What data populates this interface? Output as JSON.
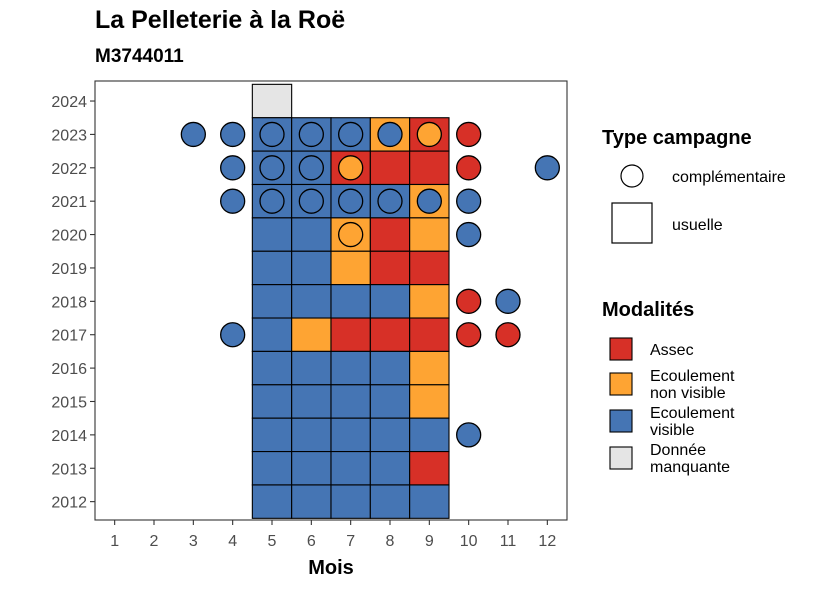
{
  "title": "La Pelleterie à la Roë",
  "subtitle": "M3744011",
  "chart_data": {
    "type": "heatmap",
    "xlabel": "Mois",
    "ylabel": "",
    "x_ticks": [
      1,
      2,
      3,
      4,
      5,
      6,
      7,
      8,
      9,
      10,
      11,
      12
    ],
    "y_ticks": [
      2012,
      2013,
      2014,
      2015,
      2016,
      2017,
      2018,
      2019,
      2020,
      2021,
      2022,
      2023,
      2024
    ],
    "xlim": [
      0.5,
      12.5
    ],
    "ylim": [
      2011.45,
      2024.6
    ],
    "grid": false,
    "legend_position": "right",
    "colors": {
      "Assec": "#d73027",
      "Ecoulement non visible": "#fea433",
      "Ecoulement visible": "#4575b4",
      "Donnée manquante": "#e5e5e5"
    },
    "legends": {
      "type_title": "Type campagne",
      "type_items": [
        {
          "label": "complémentaire",
          "shape": "circle"
        },
        {
          "label": "usuelle",
          "shape": "square"
        }
      ],
      "mod_title": "Modalités",
      "mod_items": [
        {
          "key": "Assec",
          "lines": [
            "Assec"
          ]
        },
        {
          "key": "Ecoulement non visible",
          "lines": [
            "Ecoulement",
            "non visible"
          ]
        },
        {
          "key": "Ecoulement visible",
          "lines": [
            "Ecoulement",
            "visible"
          ]
        },
        {
          "key": "Donnée manquante",
          "lines": [
            "Donnée",
            "manquante"
          ]
        }
      ]
    },
    "usuelle": [
      {
        "year": 2024,
        "months": {
          "5": "Donnée manquante"
        }
      },
      {
        "year": 2023,
        "months": {
          "5": "Ecoulement visible",
          "6": "Ecoulement visible",
          "7": "Ecoulement visible",
          "8": "Ecoulement non visible",
          "9": "Assec"
        }
      },
      {
        "year": 2022,
        "months": {
          "5": "Ecoulement visible",
          "6": "Ecoulement visible",
          "7": "Assec",
          "8": "Assec",
          "9": "Assec"
        }
      },
      {
        "year": 2021,
        "months": {
          "5": "Ecoulement visible",
          "6": "Ecoulement visible",
          "7": "Ecoulement visible",
          "8": "Ecoulement visible",
          "9": "Ecoulement non visible"
        }
      },
      {
        "year": 2020,
        "months": {
          "5": "Ecoulement visible",
          "6": "Ecoulement visible",
          "7": "Ecoulement non visible",
          "8": "Assec",
          "9": "Ecoulement non visible"
        }
      },
      {
        "year": 2019,
        "months": {
          "5": "Ecoulement visible",
          "6": "Ecoulement visible",
          "7": "Ecoulement non visible",
          "8": "Assec",
          "9": "Assec"
        }
      },
      {
        "year": 2018,
        "months": {
          "5": "Ecoulement visible",
          "6": "Ecoulement visible",
          "7": "Ecoulement visible",
          "8": "Ecoulement visible",
          "9": "Ecoulement non visible"
        }
      },
      {
        "year": 2017,
        "months": {
          "5": "Ecoulement visible",
          "6": "Ecoulement non visible",
          "7": "Assec",
          "8": "Assec",
          "9": "Assec"
        }
      },
      {
        "year": 2016,
        "months": {
          "5": "Ecoulement visible",
          "6": "Ecoulement visible",
          "7": "Ecoulement visible",
          "8": "Ecoulement visible",
          "9": "Ecoulement non visible"
        }
      },
      {
        "year": 2015,
        "months": {
          "5": "Ecoulement visible",
          "6": "Ecoulement visible",
          "7": "Ecoulement visible",
          "8": "Ecoulement visible",
          "9": "Ecoulement non visible"
        }
      },
      {
        "year": 2014,
        "months": {
          "5": "Ecoulement visible",
          "6": "Ecoulement visible",
          "7": "Ecoulement visible",
          "8": "Ecoulement visible",
          "9": "Ecoulement visible"
        }
      },
      {
        "year": 2013,
        "months": {
          "5": "Ecoulement visible",
          "6": "Ecoulement visible",
          "7": "Ecoulement visible",
          "8": "Ecoulement visible",
          "9": "Assec"
        }
      },
      {
        "year": 2012,
        "months": {
          "5": "Ecoulement visible",
          "6": "Ecoulement visible",
          "7": "Ecoulement visible",
          "8": "Ecoulement visible",
          "9": "Ecoulement visible"
        }
      }
    ],
    "complementaire": [
      {
        "year": 2023,
        "month": 3,
        "value": "Ecoulement visible"
      },
      {
        "year": 2023,
        "month": 4,
        "value": "Ecoulement visible"
      },
      {
        "year": 2023,
        "month": 5,
        "value": "Ecoulement visible"
      },
      {
        "year": 2023,
        "month": 6,
        "value": "Ecoulement visible"
      },
      {
        "year": 2023,
        "month": 7,
        "value": "Ecoulement visible"
      },
      {
        "year": 2023,
        "month": 8,
        "value": "Ecoulement visible"
      },
      {
        "year": 2023,
        "month": 9,
        "value": "Ecoulement non visible"
      },
      {
        "year": 2023,
        "month": 10,
        "value": "Assec"
      },
      {
        "year": 2022,
        "month": 4,
        "value": "Ecoulement visible"
      },
      {
        "year": 2022,
        "month": 5,
        "value": "Ecoulement visible"
      },
      {
        "year": 2022,
        "month": 6,
        "value": "Ecoulement visible"
      },
      {
        "year": 2022,
        "month": 7,
        "value": "Ecoulement non visible"
      },
      {
        "year": 2022,
        "month": 10,
        "value": "Assec"
      },
      {
        "year": 2022,
        "month": 12,
        "value": "Ecoulement visible"
      },
      {
        "year": 2021,
        "month": 4,
        "value": "Ecoulement visible"
      },
      {
        "year": 2021,
        "month": 5,
        "value": "Ecoulement visible"
      },
      {
        "year": 2021,
        "month": 6,
        "value": "Ecoulement visible"
      },
      {
        "year": 2021,
        "month": 7,
        "value": "Ecoulement visible"
      },
      {
        "year": 2021,
        "month": 8,
        "value": "Ecoulement visible"
      },
      {
        "year": 2021,
        "month": 9,
        "value": "Ecoulement visible"
      },
      {
        "year": 2021,
        "month": 10,
        "value": "Ecoulement visible"
      },
      {
        "year": 2020,
        "month": 7,
        "value": "Ecoulement non visible"
      },
      {
        "year": 2020,
        "month": 10,
        "value": "Ecoulement visible"
      },
      {
        "year": 2018,
        "month": 10,
        "value": "Assec"
      },
      {
        "year": 2018,
        "month": 11,
        "value": "Ecoulement visible"
      },
      {
        "year": 2017,
        "month": 4,
        "value": "Ecoulement visible"
      },
      {
        "year": 2017,
        "month": 10,
        "value": "Assec"
      },
      {
        "year": 2017,
        "month": 11,
        "value": "Assec"
      },
      {
        "year": 2014,
        "month": 10,
        "value": "Ecoulement visible"
      }
    ]
  }
}
